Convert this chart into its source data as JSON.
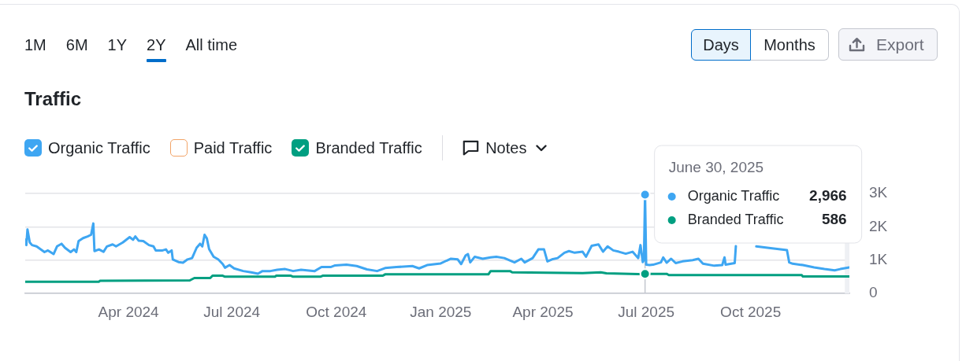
{
  "chart_data": {
    "type": "line",
    "title": "Traffic",
    "series": [
      {
        "name": "Organic Traffic",
        "color": "#3ea6f2",
        "x": [
          "2024-01-01",
          "2024-01-02",
          "2024-01-03",
          "2024-01-05",
          "2024-01-07",
          "2024-01-11",
          "2024-01-18",
          "2024-01-21",
          "2024-01-26",
          "2024-01-29",
          "2024-02-02",
          "2024-02-05",
          "2024-02-10",
          "2024-02-13",
          "2024-02-15",
          "2024-02-17",
          "2024-02-21",
          "2024-02-25",
          "2024-02-28",
          "2024-03-01",
          "2024-03-02",
          "2024-03-06",
          "2024-03-10",
          "2024-03-13",
          "2024-03-18",
          "2024-03-21",
          "2024-03-27",
          "2024-04-02",
          "2024-04-05",
          "2024-04-07",
          "2024-04-10",
          "2024-04-14",
          "2024-04-19",
          "2024-04-23",
          "2024-04-25",
          "2024-05-01",
          "2024-05-04",
          "2024-05-06",
          "2024-05-09",
          "2024-05-10",
          "2024-05-15",
          "2024-05-19",
          "2024-05-23",
          "2024-05-27",
          "2024-05-31",
          "2024-06-03",
          "2024-06-05",
          "2024-06-07",
          "2024-06-09",
          "2024-06-11",
          "2024-06-15",
          "2024-06-19",
          "2024-06-23",
          "2024-06-25",
          "2024-06-29",
          "2024-07-03",
          "2024-07-11",
          "2024-07-18",
          "2024-07-24",
          "2024-07-28",
          "2024-08-04",
          "2024-08-10",
          "2024-08-17",
          "2024-08-24",
          "2024-08-31",
          "2024-09-12",
          "2024-09-18",
          "2024-09-26",
          "2024-09-30",
          "2024-10-10",
          "2024-10-19",
          "2024-10-28",
          "2024-11-06",
          "2024-11-13",
          "2024-11-23",
          "2024-12-07",
          "2024-12-13",
          "2024-12-20",
          "2025-01-01",
          "2025-01-06",
          "2025-01-10",
          "2025-01-16",
          "2025-01-19",
          "2025-01-23",
          "2025-01-25",
          "2025-01-27",
          "2025-01-31",
          "2025-02-07",
          "2025-02-14",
          "2025-02-19",
          "2025-02-26",
          "2025-03-07",
          "2025-03-13",
          "2025-03-16",
          "2025-03-23",
          "2025-03-28",
          "2025-04-02",
          "2025-04-05",
          "2025-04-09",
          "2025-04-14",
          "2025-04-20",
          "2025-04-24",
          "2025-04-29",
          "2025-05-06",
          "2025-05-09",
          "2025-05-14",
          "2025-05-20",
          "2025-05-24",
          "2025-05-28",
          "2025-06-02",
          "2025-06-07",
          "2025-06-13",
          "2025-06-19",
          "2025-06-24",
          "2025-06-26",
          "2025-06-28",
          "2025-06-29",
          "2025-06-30",
          "2025-07-01",
          "2025-07-04",
          "2025-07-07",
          "2025-07-10",
          "2025-07-14",
          "2025-07-16",
          "2025-07-19",
          "2025-07-23",
          "2025-07-27",
          "2025-08-02",
          "2025-08-11",
          "2025-08-16",
          "2025-08-20",
          "2025-08-30",
          "2025-09-06",
          "2025-09-08",
          "2025-09-09",
          "2025-09-17",
          "2025-09-18",
          "2025-09-19",
          "2025-10-06",
          "2025-10-20",
          "2025-11-02",
          "2025-11-04",
          "2025-11-07",
          "2025-11-16",
          "2025-11-26",
          "2025-12-05",
          "2025-12-14",
          "2025-12-19",
          "2025-12-27"
        ],
        "values": [
          1610,
          1450,
          1920,
          1530,
          1450,
          1410,
          1240,
          1290,
          1180,
          1410,
          1490,
          1370,
          1240,
          1320,
          1240,
          1570,
          1660,
          1710,
          1760,
          2100,
          1270,
          1320,
          1250,
          1410,
          1470,
          1410,
          1530,
          1690,
          1610,
          1710,
          1580,
          1570,
          1450,
          1410,
          1290,
          1290,
          1320,
          1220,
          1290,
          1020,
          940,
          920,
          1020,
          1060,
          1370,
          1490,
          1410,
          1760,
          1650,
          1330,
          1100,
          1020,
          880,
          770,
          850,
          750,
          670,
          630,
          590,
          670,
          670,
          710,
          730,
          670,
          710,
          670,
          790,
          790,
          840,
          860,
          820,
          720,
          670,
          760,
          790,
          820,
          750,
          850,
          900,
          980,
          1040,
          1020,
          880,
          1140,
          1180,
          930,
          1100,
          1040,
          1080,
          1100,
          1060,
          930,
          1040,
          930,
          1060,
          1320,
          1320,
          960,
          1020,
          1060,
          1220,
          1270,
          1220,
          1250,
          1100,
          1430,
          1470,
          1250,
          1410,
          1290,
          1250,
          1190,
          1250,
          1060,
          1450,
          940,
          1000,
          2966,
          860,
          850,
          860,
          890,
          930,
          1080,
          920,
          1040,
          910,
          960,
          1000,
          1040,
          890,
          830,
          850,
          1080,
          860,
          910,
          1420,
          null,
          1410,
          1350,
          1300,
          930,
          890,
          850,
          780,
          730,
          690,
          730,
          780
        ]
      },
      {
        "name": "Paid Traffic",
        "color": "#f2a468"
      },
      {
        "name": "Branded Traffic",
        "color": "#009f81",
        "x": [
          "2024-01-01",
          "2024-03-06",
          "2024-03-07",
          "2024-05-25",
          "2024-05-29",
          "2024-06-12",
          "2024-06-14",
          "2024-06-23",
          "2024-06-25",
          "2024-08-08",
          "2024-08-09",
          "2024-08-22",
          "2024-08-24",
          "2024-09-17",
          "2024-09-19",
          "2024-11-11",
          "2024-11-13",
          "2025-02-12",
          "2025-02-14",
          "2025-03-03",
          "2025-03-05",
          "2025-05-06",
          "2025-05-22",
          "2025-05-27",
          "2025-06-24",
          "2025-06-30",
          "2025-07-19",
          "2025-07-21",
          "2025-11-15",
          "2025-11-16",
          "2025-12-27"
        ],
        "values": [
          350,
          350,
          380,
          390,
          460,
          460,
          530,
          530,
          500,
          500,
          530,
          530,
          500,
          500,
          530,
          530,
          570,
          570,
          670,
          670,
          630,
          610,
          630,
          600,
          580,
          586,
          586,
          550,
          550,
          510,
          510
        ]
      }
    ],
    "xlim": [
      "2024-01-01",
      "2025-12-27"
    ],
    "xticks": [
      {
        "value": "2024-04-01",
        "label": "Apr 2024"
      },
      {
        "value": "2024-07-01",
        "label": "Jul 2024"
      },
      {
        "value": "2024-10-01",
        "label": "Oct 2024"
      },
      {
        "value": "2025-01-01",
        "label": "Jan 2025"
      },
      {
        "value": "2025-04-01",
        "label": "Apr 2025"
      },
      {
        "value": "2025-07-01",
        "label": "Jul 2025"
      },
      {
        "value": "2025-10-01",
        "label": "Oct 2025"
      }
    ],
    "ylim": [
      0,
      3000
    ],
    "yticks": [
      0,
      {
        "value": 1000,
        "label": "1K"
      },
      {
        "value": 2000,
        "label": "2K"
      },
      {
        "value": 3000,
        "label": "3K"
      }
    ],
    "grid": "y",
    "legend": "top left",
    "ref_lines": [
      {
        "axis": "x",
        "value": "2025-06-30",
        "color": "#c3c6ce"
      }
    ],
    "bands": [
      {
        "axis": "x",
        "from": "2025-12-23",
        "to": "2025-12-27",
        "color": "#eef0f4"
      }
    ],
    "annotations": [
      "1M",
      "6M",
      "1Y",
      "2Y",
      "All time",
      "Days",
      "Months",
      "Export",
      "Notes",
      "June 30, 2025",
      "2,966",
      "586"
    ]
  }
}
